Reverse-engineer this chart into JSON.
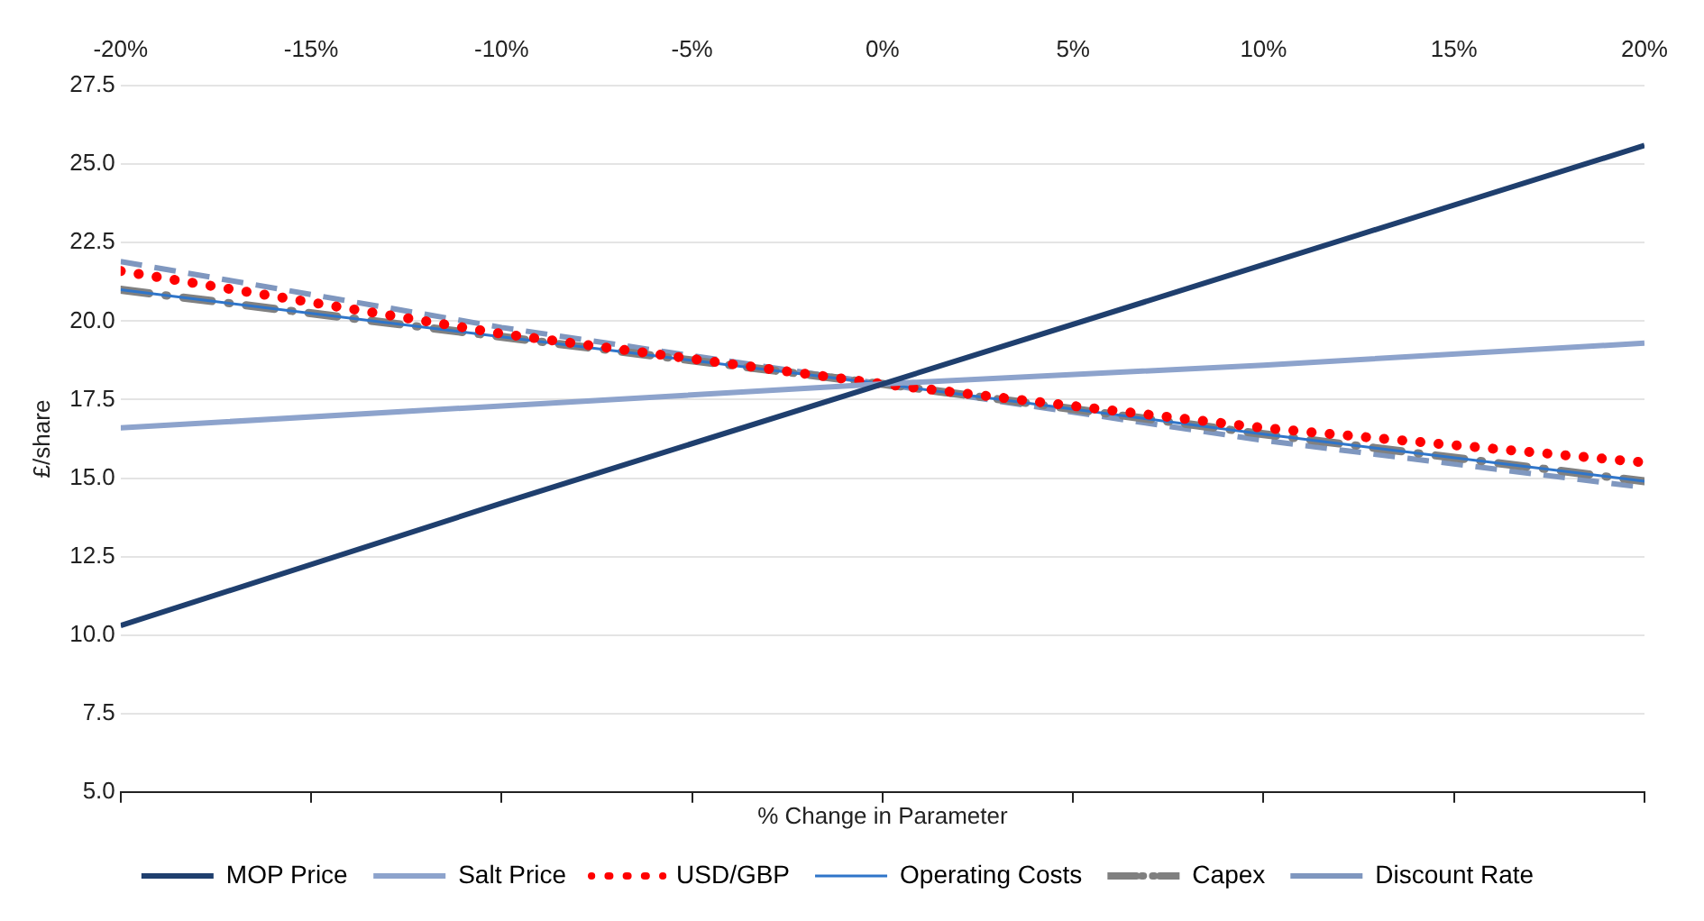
{
  "chart_data": {
    "type": "line",
    "xlabel": "% Change in Parameter",
    "ylabel": "£/share",
    "x": [
      -20,
      -10,
      0,
      10,
      20
    ],
    "xlim": [
      -20,
      20
    ],
    "xticks": [
      {
        "value": -20,
        "label": "-20%"
      },
      {
        "value": -15,
        "label": "-15%"
      },
      {
        "value": -10,
        "label": "-10%"
      },
      {
        "value": -5,
        "label": "-5%"
      },
      {
        "value": 0,
        "label": "0%"
      },
      {
        "value": 5,
        "label": "5%"
      },
      {
        "value": 10,
        "label": "10%"
      },
      {
        "value": 15,
        "label": "15%"
      },
      {
        "value": 20,
        "label": "20%"
      }
    ],
    "ylim": [
      5,
      27.5
    ],
    "yticks": [
      {
        "value": 5,
        "label": "5.0"
      },
      {
        "value": 7.5,
        "label": "7.5"
      },
      {
        "value": 10,
        "label": "10.0"
      },
      {
        "value": 12.5,
        "label": "12.5"
      },
      {
        "value": 15,
        "label": "15.0"
      },
      {
        "value": 17.5,
        "label": "17.5"
      },
      {
        "value": 20,
        "label": "20.0"
      },
      {
        "value": 22.5,
        "label": "22.5"
      },
      {
        "value": 25,
        "label": "25.0"
      },
      {
        "value": 27.5,
        "label": "27.5"
      }
    ],
    "grid": "y",
    "legend": "bottom",
    "marker": "none",
    "series": [
      {
        "name": "MOP Price",
        "color": "#1f3f6e",
        "line_style": "solid",
        "values": [
          10.3,
          14.2,
          18.0,
          21.8,
          25.6
        ]
      },
      {
        "name": "Salt Price",
        "color": "#8da3cc",
        "line_style": "solid",
        "values": [
          16.6,
          17.3,
          18.0,
          18.6,
          19.3
        ]
      },
      {
        "name": "USD/GBP",
        "color": "#ff0000",
        "line_style": "dotted",
        "values": [
          21.6,
          19.6,
          18.0,
          16.6,
          15.5
        ]
      },
      {
        "name": "Operating Costs",
        "color": "#2f75c9",
        "line_style": "solid",
        "values": [
          21.0,
          19.5,
          18.0,
          16.4,
          14.9
        ]
      },
      {
        "name": "Capex",
        "color": "#808080",
        "line_style": "dashdot",
        "values": [
          21.0,
          19.5,
          18.0,
          16.4,
          14.9
        ]
      },
      {
        "name": "Discount Rate",
        "color": "#7f97bf",
        "line_style": "dashed",
        "values": [
          21.9,
          19.8,
          18.0,
          16.2,
          14.7
        ]
      }
    ]
  }
}
